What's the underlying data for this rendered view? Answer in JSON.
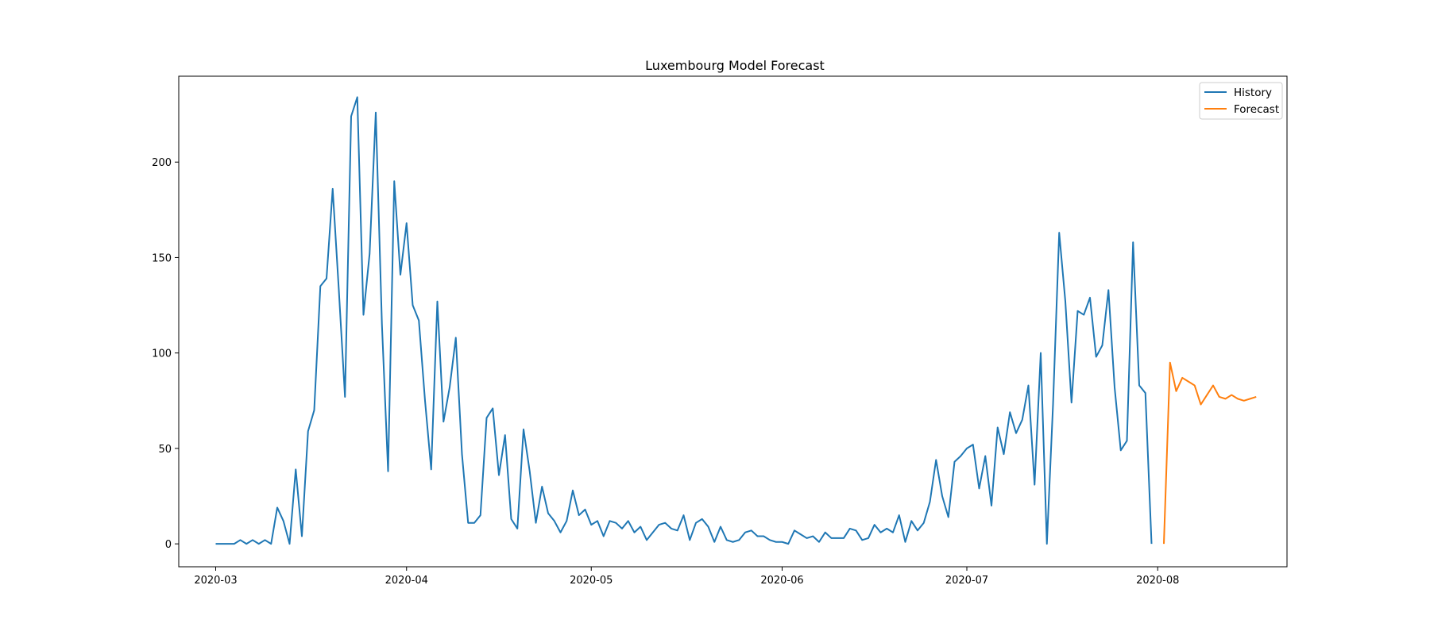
{
  "chart_data": {
    "type": "line",
    "title": "Luxembourg Model Forecast",
    "xlabel": "",
    "ylabel": "",
    "x_axis": {
      "type": "date",
      "range": [
        "2020-02-24",
        "2020-08-22"
      ],
      "tick_dates": [
        "2020-03-01",
        "2020-04-01",
        "2020-05-01",
        "2020-06-01",
        "2020-07-01",
        "2020-08-01"
      ],
      "tick_labels": [
        "2020-03",
        "2020-04",
        "2020-05",
        "2020-06",
        "2020-07",
        "2020-08"
      ]
    },
    "y_axis": {
      "range": [
        -12,
        245
      ],
      "ticks": [
        0,
        50,
        100,
        150,
        200
      ],
      "tick_labels": [
        "0",
        "50",
        "100",
        "150",
        "200"
      ]
    },
    "grid": false,
    "legend": {
      "position": "top-right",
      "entries": [
        {
          "label": "History",
          "color": "#1f77b4"
        },
        {
          "label": "Forecast",
          "color": "#ff7f0e"
        }
      ]
    },
    "series": [
      {
        "name": "History",
        "color": "#1f77b4",
        "start_date": "2020-03-01",
        "values": [
          0,
          0,
          0,
          0,
          2,
          0,
          2,
          0,
          2,
          0,
          19,
          12,
          0,
          39,
          4,
          59,
          70,
          135,
          139,
          186,
          133,
          77,
          224,
          234,
          120,
          152,
          226,
          115,
          38,
          190,
          141,
          168,
          125,
          117,
          75,
          39,
          127,
          64,
          82,
          108,
          47,
          11,
          11,
          15,
          66,
          71,
          36,
          57,
          13,
          8,
          60,
          38,
          11,
          30,
          16,
          12,
          6,
          12,
          28,
          15,
          18,
          10,
          12,
          4,
          12,
          11,
          8,
          12,
          6,
          9,
          2,
          6,
          10,
          11,
          8,
          7,
          15,
          2,
          11,
          13,
          9,
          1,
          9,
          2,
          1,
          2,
          6,
          7,
          4,
          4,
          2,
          1,
          1,
          0,
          7,
          5,
          3,
          4,
          1,
          6,
          3,
          3,
          3,
          8,
          7,
          2,
          3,
          10,
          6,
          8,
          6,
          15,
          1,
          12,
          7,
          11,
          22,
          44,
          25,
          14,
          43,
          46,
          50,
          52,
          29,
          46,
          20,
          61,
          47,
          69,
          58,
          65,
          83,
          31,
          100,
          0,
          73,
          163,
          127,
          74,
          122,
          120,
          129,
          98,
          104,
          133,
          82,
          49,
          54,
          158,
          83,
          79,
          0
        ]
      },
      {
        "name": "Forecast",
        "color": "#ff7f0e",
        "start_date": "2020-08-02",
        "values": [
          0,
          95,
          80,
          87,
          85,
          83,
          73,
          78,
          83,
          77,
          76,
          78,
          76,
          75,
          76,
          77
        ]
      }
    ]
  }
}
